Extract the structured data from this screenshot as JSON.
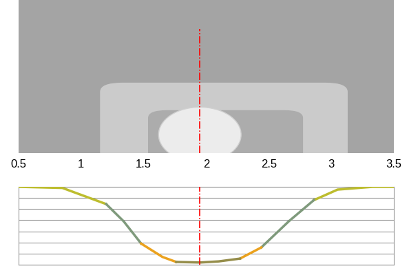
{
  "chart_data": {
    "type": "line",
    "x": [
      0.5,
      0.85,
      1.2,
      1.34,
      1.48,
      1.65,
      1.76,
      1.95,
      2.1,
      2.27,
      2.44,
      2.66,
      2.86,
      3.05,
      3.33,
      3.5
    ],
    "series": [
      {
        "color": "#bdbd2e",
        "values": [
          7.0,
          6.9,
          5.45,
          null,
          null,
          null,
          null,
          null,
          null,
          null,
          null,
          null,
          5.8,
          6.75,
          7.0,
          7.0
        ]
      },
      {
        "color": "#7f9a7c",
        "values": [
          null,
          null,
          5.45,
          3.9,
          1.9,
          null,
          null,
          null,
          null,
          null,
          1.55,
          3.9,
          5.8,
          null,
          null,
          null
        ]
      },
      {
        "color": "#eba21e",
        "values": [
          null,
          null,
          null,
          null,
          1.9,
          0.7,
          0.25,
          null,
          null,
          0.55,
          1.55,
          null,
          null,
          null,
          null,
          null
        ]
      },
      {
        "color": "#958d4a",
        "values": [
          null,
          null,
          null,
          null,
          null,
          null,
          0.25,
          0.2,
          0.3,
          0.55,
          null,
          null,
          null,
          null,
          null,
          null
        ]
      }
    ],
    "xlim": [
      0.5,
      3.5
    ],
    "xticks": [
      0.5,
      1,
      1.5,
      2,
      2.5,
      3,
      3.5
    ],
    "ylim": [
      0,
      7
    ],
    "yticks": [
      0,
      1,
      2,
      3,
      4,
      5,
      6,
      7
    ],
    "grid": true,
    "tick_labels": "x",
    "cursor_x": 1.95
  }
}
